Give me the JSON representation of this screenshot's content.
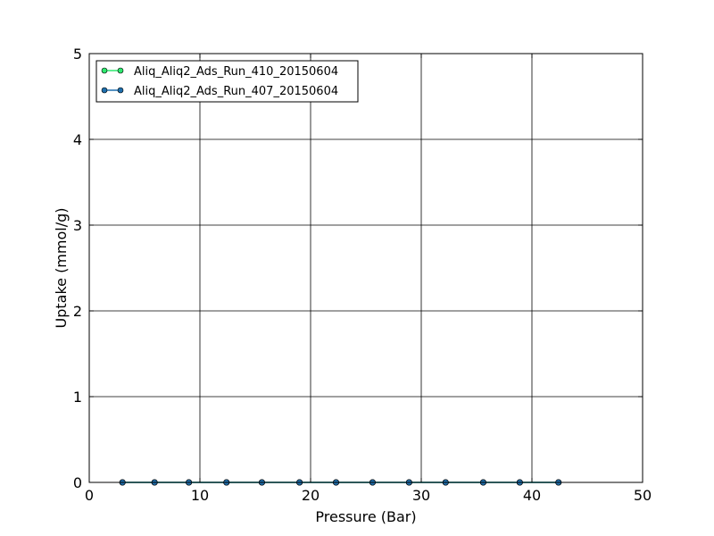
{
  "chart_data": {
    "type": "line",
    "title": "",
    "xlabel": "Pressure (Bar)",
    "ylabel": "Uptake (mmol/g)",
    "xlim": [
      0,
      50
    ],
    "ylim": [
      0,
      5
    ],
    "xticks": [
      0,
      10,
      20,
      30,
      40,
      50
    ],
    "yticks": [
      0,
      1,
      2,
      3,
      4,
      5
    ],
    "grid": true,
    "legend_position": "top-left",
    "series": [
      {
        "name": "Aliq_Aliq2_Ads_Run_410_20150604",
        "color": "#2ee86f",
        "x": [
          3.0,
          5.9,
          9.0,
          12.4,
          15.6,
          19.0,
          22.3,
          25.6,
          28.9,
          32.2,
          35.6,
          38.9,
          42.4
        ],
        "y": [
          0,
          0,
          0,
          0,
          0,
          0,
          0,
          0,
          0,
          0,
          0,
          0,
          0
        ]
      },
      {
        "name": "Aliq_Aliq2_Ads_Run_407_20150604",
        "color": "#1f6fad",
        "x": [
          3.0,
          5.9,
          9.0,
          12.4,
          15.6,
          19.0,
          22.3,
          25.6,
          28.9,
          32.2,
          35.6,
          38.9,
          42.4
        ],
        "y": [
          0,
          0,
          0,
          0,
          0,
          0,
          0,
          0,
          0,
          0,
          0,
          0,
          0
        ]
      }
    ]
  }
}
